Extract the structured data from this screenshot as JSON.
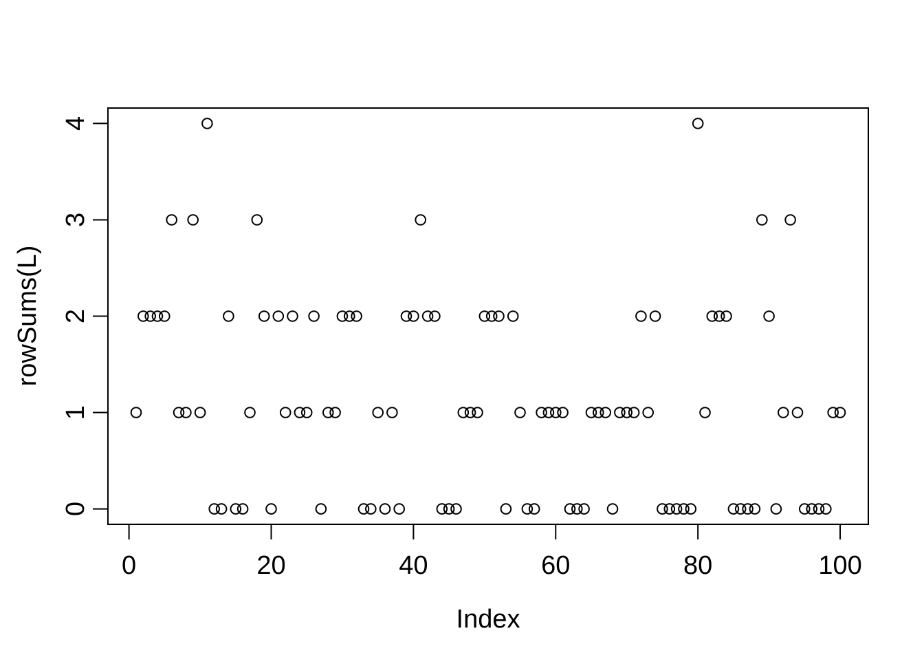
{
  "figure": {
    "background": "#ffffff",
    "foreground": "#000000"
  },
  "chart_data": {
    "type": "scatter",
    "title": "",
    "xlabel": "Index",
    "ylabel": "rowSums(L)",
    "marker": "open-circle",
    "marker_color": "#000000",
    "grid": false,
    "legend": null,
    "x_ticks": [
      0,
      20,
      40,
      60,
      80,
      100
    ],
    "y_ticks": [
      0,
      1,
      2,
      3,
      4
    ],
    "xlim": [
      -2.96,
      103.96
    ],
    "ylim": [
      -0.16,
      4.16
    ],
    "x": [
      1,
      2,
      3,
      4,
      5,
      6,
      7,
      8,
      9,
      10,
      11,
      12,
      13,
      14,
      15,
      16,
      17,
      18,
      19,
      20,
      21,
      22,
      23,
      24,
      25,
      26,
      27,
      28,
      29,
      30,
      31,
      32,
      33,
      34,
      35,
      36,
      37,
      38,
      39,
      40,
      41,
      42,
      43,
      44,
      45,
      46,
      47,
      48,
      49,
      50,
      51,
      52,
      53,
      54,
      55,
      56,
      57,
      58,
      59,
      60,
      61,
      62,
      63,
      64,
      65,
      66,
      67,
      68,
      69,
      70,
      71,
      72,
      73,
      74,
      75,
      76,
      77,
      78,
      79,
      80,
      81,
      82,
      83,
      84,
      85,
      86,
      87,
      88,
      89,
      90,
      91,
      92,
      93,
      94,
      95,
      96,
      97,
      98,
      99,
      100
    ],
    "y": [
      1,
      2,
      2,
      2,
      2,
      3,
      1,
      1,
      3,
      1,
      4,
      0,
      0,
      2,
      0,
      0,
      1,
      3,
      2,
      0,
      2,
      1,
      2,
      1,
      1,
      2,
      0,
      1,
      1,
      2,
      2,
      2,
      0,
      0,
      1,
      0,
      1,
      0,
      2,
      2,
      3,
      2,
      2,
      0,
      0,
      0,
      1,
      1,
      1,
      2,
      2,
      2,
      0,
      2,
      1,
      0,
      0,
      1,
      1,
      1,
      1,
      0,
      0,
      0,
      1,
      1,
      1,
      0,
      1,
      1,
      1,
      2,
      1,
      2,
      0,
      0,
      0,
      0,
      0,
      4,
      1,
      2,
      2,
      2,
      0,
      0,
      0,
      0,
      3,
      2,
      0,
      1,
      3,
      1,
      0,
      0,
      0,
      0,
      1,
      1
    ]
  }
}
